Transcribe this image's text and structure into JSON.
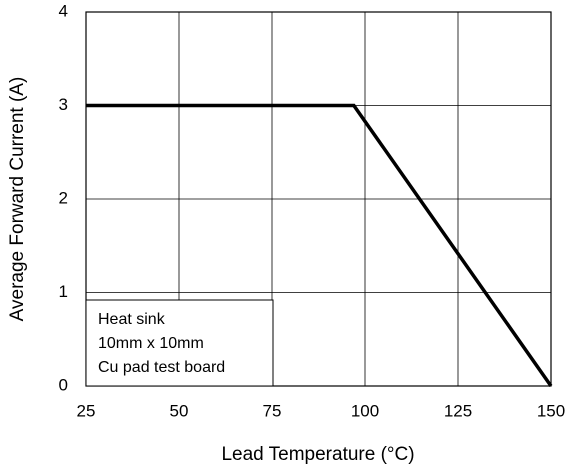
{
  "chart_data": {
    "type": "line",
    "x_label": "Lead Temperature (°C)",
    "y_label": "Average Forward Current (A)",
    "x": [
      25,
      97,
      150
    ],
    "values": [
      3,
      3,
      0
    ],
    "color": "#000000",
    "xlim": [
      25,
      150
    ],
    "xticks": [
      25,
      50,
      75,
      100,
      125,
      150
    ],
    "ylim": [
      0,
      4
    ],
    "yticks": [
      0,
      1,
      2,
      3,
      4
    ],
    "grid": true,
    "annotation": [
      "Heat sink",
      "10mm x 10mm",
      "Cu pad test board"
    ]
  }
}
